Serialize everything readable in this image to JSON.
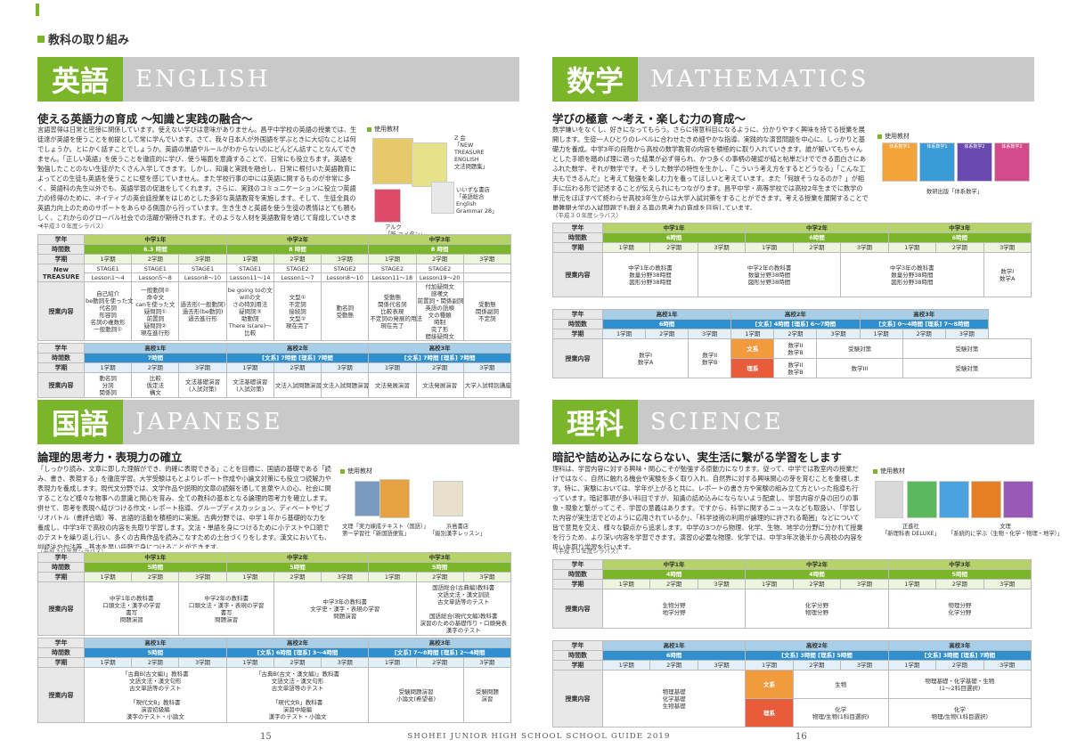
{
  "section_heading": "教科の取り組み",
  "footer": {
    "left_page": "15",
    "right_page": "16",
    "center": "SHOHEI JUNIOR HIGH SCHOOL SCHOOL GUIDE 2019"
  },
  "english": {
    "jp": "英語",
    "en": "ENGLISH",
    "subtitle": "使える英語力の育成 〜知識と実践の融合〜",
    "body": "言語習得は日常と密接に関係しています。使えない学びは意味がありません。昌平中学校の英語の授業では、生徒達が英語を使うことを前提として常に学んでいます。さて、我々日本人が外国語を学ぶときに大切なことは何でしょうか。とにかく話すことでしょうか。英語の単語やルールがわからないのにどんどん話すことなんてできません。「正しい英語」を使うことを徹底的に学び、使う場面を意識することで、日常にも役立ちます。英語を勉強したことのない生徒がたくさん入学してきます。しかし、知識と実践を融合し、日常に根付いた英語教育によってどの生徒も英語を使うことに壁を感じていません。また学校行事の中には英語に関するものが非常に多く、英語科の先生以外でも、英語学習の促進をしてくれます。さらに、実践のコミュニケーションに役立つ英語力の修得のために、ネイティブの英会話授業をはじめとした多彩な英語教育を実施します。そして、生徒全員の英語力向上のためのサポートをあらゆる側面から行っています。生き生きと英語を使う生徒の表情はとても頼もしく、これからのグローバル社会での活躍が期待されます。そのような人材を英語教育を通じて育成していきます。",
    "note": "（平成３０年度シラバス）",
    "materials_label": "使用教材",
    "mat1": "Z 会\n「NEW\nTREASURE\nENGLISH\n文法問題集」",
    "mat2": "いいずな書店\n「英語総合\nEnglish\nGrammar 28」",
    "mat3": "アルク\n「新 ユメタン」",
    "jh": {
      "labels": {
        "grade": "学年",
        "hours": "時間数",
        "term": "学期",
        "text": "New TREASURE",
        "content": "授業内容"
      },
      "grades": [
        "中学1年",
        "中学2年",
        "中学3年"
      ],
      "hours": [
        "6.3 時間",
        "8 時間",
        "8 時間"
      ],
      "terms": [
        "1学期",
        "2学期",
        "3学期",
        "1学期",
        "2学期",
        "3学期",
        "1学期",
        "2学期",
        "3学期"
      ],
      "stages": [
        "STAGE1",
        "STAGE1",
        "STAGE1",
        "STAGE1",
        "STAGE2",
        "STAGE2",
        "STAGE2",
        "STAGE2",
        ""
      ],
      "lessons": [
        "Lesson1〜4",
        "Lesson5〜8",
        "Lesson8〜10",
        "Lesson11〜14",
        "Lesson1〜7",
        "Lesson8〜10",
        "Lesson11〜18",
        "Lesson19〜20",
        ""
      ],
      "contents": [
        "自己紹介\nbe動詞を使った文\n代名詞\n形容詞\n名詞の複数形\n一般動詞①",
        "一般動詞②\n命令文\ncanを使った文\n疑問詞①\n前置詞\n疑問詞②\n現在進行形",
        "過去形(一般動詞)\n過去形(be動詞)\n過去進行形",
        "be going toの文\nwillの文\nさの特別用法\n疑問詞③\n助動詞\nThere is(are)〜\n比較",
        "文型①\n不定詞\n接続詞\n文型②\n現在完了",
        "動名詞\n受動態",
        "受動態\n関係代名詞\n比較表現\n不定詞の発展的用法\n現在完了",
        "付加疑問文\n感嘆文\n前置詞・関係副詞\n英語の語順\n文の種類\n時制\n完了形\n間接疑問文",
        "受動態\n関係副詞\n不定詞"
      ]
    },
    "hs": {
      "labels": {
        "grade": "学年",
        "hours": "時間数",
        "term": "学期",
        "content": "授業内容"
      },
      "grades": [
        "高校1年",
        "高校2年",
        "高校3年"
      ],
      "hours": [
        "7時間",
        "[文系] 7時間 [理系] 7時間",
        "[文系] 7時間 [理系] 7時間"
      ],
      "terms": [
        "1学期",
        "2学期",
        "3学期",
        "1学期",
        "2学期",
        "3学期",
        "1学期",
        "2学期",
        "3学期"
      ],
      "contents": [
        "動名詞\n分詞\n関係詞",
        "比較\n仮定法\n構文",
        "",
        "文法基礎演習\n(入試対策)",
        "文法基礎演習\n(入試対策)",
        "文法入試問題演習",
        "文法入試問題演習",
        "文法発展演習",
        "文法発展演習",
        "大学入試特別講座"
      ]
    }
  },
  "math": {
    "jp": "数学",
    "en": "MATHEMATICS",
    "subtitle": "学びの極意 〜考え・楽しむ力の育成〜",
    "body": "数学嫌いをなくし、好きになってもらう。さらに得意科目になるように、分かりやすく興味を持てる授業を展開します。生徒一人ひとりのレベルに合わせたきめ細やかな指導、実践的な演習問題を中心に、しっかりと基礎力を養成。中学3年の段階から高校の数学教育の内容を積極的に取り入れていきます。誰が解いてもちゃんとした手順を踏めば理に適った結果が必ず得られ、かつ多くの事柄の確認が結と帖単だけでできる面白さにあふれた数学、それが数学です。そうした数学の特性を生かし、「こういう考え方をするとどうなる」「こんな工夫もできるんだ」と考えて勉強を楽しむ力を養ってほしいと考えています。また「何故そうなるのか？」が相手に伝わる形で記述することが伝えられにもつながります。昌平中学・高等学校では高校2年生までに数学の単元をほぼすべて終わらせ高校3年生からは大学入試対策をすることができます。考える授業を展開することで最難関大学の入試問題でも戦える真の思考力の育成を目指しています。",
    "note": "（平成３０年度シラバス）",
    "materials_label": "使用教材",
    "mat_caption": "数研出版「体系数学」",
    "books": [
      "体系数学1",
      "体系数学1",
      "体系数学2",
      "体系数学2"
    ],
    "jh": {
      "grades": [
        "中学1年",
        "中学2年",
        "中学3年"
      ],
      "hours": [
        "6時間",
        "6時間",
        "6時間"
      ],
      "terms": [
        "1学期",
        "2学期",
        "3学期",
        "1学期",
        "2学期",
        "3学期",
        "1学期",
        "2学期",
        "3学期"
      ],
      "contents": [
        "中学1年の教科書\n数量分野38時間\n図形分野38時間",
        "中学2年の教科書\n数量分野38時間\n図形分野38時間",
        "中学3年の教科書\n数量分野38時間\n図形分野38時間",
        "数学I\n数学A"
      ]
    },
    "hs": {
      "grades": [
        "高校1年",
        "高校2年",
        "高校3年"
      ],
      "hours": [
        "6時間",
        "[文系] 4時間 [理系] 6〜7時間",
        "[文系] 0〜4時間 [理系] 7〜8時間"
      ],
      "terms": [
        "1学期",
        "2学期",
        "3学期",
        "1学期",
        "2学期",
        "3学期",
        "1学期",
        "2学期",
        "3学期"
      ],
      "bunkei": "文系",
      "rikei": "理系",
      "c1": "数学I\n数学A",
      "c2": "数学II\n数学B",
      "bun_a": "数学II\n数学B",
      "bun_b": "受験対策",
      "bun_c": "受験対策",
      "ri_a": "数学II\n数学B",
      "ri_b": "数学III",
      "ri_c": "受験対策"
    }
  },
  "japanese": {
    "jp": "国語",
    "en": "JAPANESE",
    "subtitle": "論理的思考力・表現力の確立",
    "body": "「しっかり読み、文章に即した理解ができ、的確に表現できる」ことを目標に、国語の基礎である「読み、書き、表現する」を徹底学習。大学受験はもとよりレポート作成や小論文対策にも役立つ読解力や表現力を養成します。現代文分野では、文学作品や説明的文章の読解を通して言葉や人の心、社会に関することなど様々な物事への意識と関心を育み、全ての教科の基本となる論理的思考力を確立します。併せて、思考を表現へ結びつける作文・レポート指導、グループディスカッション、ディベートやビブリオバトル（書評合戦）等、言語的活動を積極的に実施。古典分野では、中学１年から基礎的な力を養成し、中学3年で高校の内容を先取り学習します。文法・単語を身につけるために小テストや口頭でのテストを繰り返し行い、多くの古典作品を読みこなすための土台づくりをします。漢文においても、訓読法や句法等、基本を早い段階で身につけることができます。",
    "note": "（平成３０年度シラバス）",
    "materials_label": "使用教材",
    "mat1": "文理「実力練成テキスト（国語）」\n第一学習社「新国語便覧」",
    "mat2": "浜島書店\n「級別漢字レッスン」",
    "jh": {
      "grades": [
        "中学1年",
        "中学2年",
        "中学3年"
      ],
      "hours": [
        "5時間",
        "5時間",
        "5時間"
      ],
      "terms": [
        "1学期",
        "2学期",
        "3学期",
        "1学期",
        "2学期",
        "3学期",
        "1学期",
        "2学期",
        "3学期"
      ],
      "contents": [
        "中学1年の教科書\n口頭文法・漢字の学習\n書写\n問題演習",
        "中学2年の教科書\n口頭文法・漢字・表現の学習\n書写\n問題演習",
        "中学3年の教科書\n文学史・漢字・表現の学習\n問題演習",
        "国語総合(古典編)教科書\n文語文法・漢文訓読\n古文単語等のテスト\n\n国語総合(現代文編)教科書\n演習のための基礎作り・口頭発表\n漢字のテスト"
      ]
    },
    "hs": {
      "grades": [
        "高校1年",
        "高校2年",
        "高校3年"
      ],
      "hours": [
        "5時間",
        "[文系] 6時間 [理系] 3〜4時間",
        "[文系] 7〜8時間 [理系] 2〜4時間"
      ],
      "terms": [
        "1学期",
        "2学期",
        "3学期",
        "1学期",
        "2学期",
        "3学期",
        "1学期",
        "2学期",
        "3学期"
      ],
      "contents": [
        "「古典B(古文編)」教科書\n文語文法・漢文句形\n古文単語等のテスト\n\n「現代文B」教科書\n演習初級編\n漢字のテスト・小論文",
        "「古典B(古文・漢文編)」教科書\n文語文法・漢文句形\n古文単語等のテスト\n\n「現代文B」教科書\n演習中級編\n漢字のテスト・小論文",
        "受験問題演習\n小論文(希望者)",
        "受験問題\n演習"
      ]
    }
  },
  "science": {
    "jp": "理科",
    "en": "SCIENCE",
    "subtitle": "暗記や詰め込みにならない、実生活に繋がる学習をします",
    "body": "理科は、学習内容に対する興味・関心こそが勉強する原動力になります。従って、中学では教室内の授業だけではなく、自然に触れる機会や実験を多く取り入れ、自然界に対する興味関心の芽を育むことを重視します。特に、実験においては、学年が上がると共に、レポートの書き方や実験の組み立て方といった指導も行っています。暗記事項が多い科目ですが、知識の詰め込みにならないよう配慮し、学習内容が身の回りの事象・現象と繋がってこそ、学習の意義はあります。ですから、科学に関するニュースなども取扱い、「学習した内容が実生活でどのように応用されているか」、「科学技術の利用が論理的に許される範囲」などについて皆で意見を交え、様々な観点から追求します。中学の3つから物理、化学、生物、地学の分野に分かれて授業を行うため、より深い内容を学習できます。演習の必要な物理、化学では、中学3年次後半から高校の内容を扱い先取り学習を行います。",
    "note": "（平成３０年度シラバス）",
    "materials_label": "使用教材",
    "mat1": "正進社\n「新理科表 DELUXE」",
    "mat2": "文理\n「系統的に学ぶ（生物・化学・物理・地学）」",
    "jh": {
      "grades": [
        "中学1年",
        "中学2年",
        "中学3年"
      ],
      "hours": [
        "4時間",
        "4時間",
        "5時間"
      ],
      "terms": [
        "1学期",
        "2学期",
        "3学期",
        "1学期",
        "2学期",
        "3学期",
        "1学期",
        "2学期",
        "3学期"
      ],
      "contents": [
        "生物分野\n地学分野",
        "化学分野\n物理分野",
        "物理分野\n化学分野"
      ]
    },
    "hs": {
      "grades": [
        "高校1年",
        "高校2年",
        "高校3年"
      ],
      "hours": [
        "6時間",
        "[文系] 3時間 [理系] 5時間",
        "[文系] 3時間 [理系] 7時間"
      ],
      "terms": [
        "1学期",
        "2学期",
        "3学期",
        "1学期",
        "2学期",
        "3学期",
        "1学期",
        "2学期",
        "3学期"
      ],
      "bunkei": "文系",
      "rikei": "理系",
      "c1": "物理基礎\n化学基礎\n生物基礎",
      "bun_b": "生物",
      "bun_c": "物理基礎・化学基礎・生物\n(1〜2科目選択)",
      "ri_b": "化学\n物理/生物(1科目選択)",
      "ri_c": "化学\n物理/生物(1科目選択)"
    }
  }
}
